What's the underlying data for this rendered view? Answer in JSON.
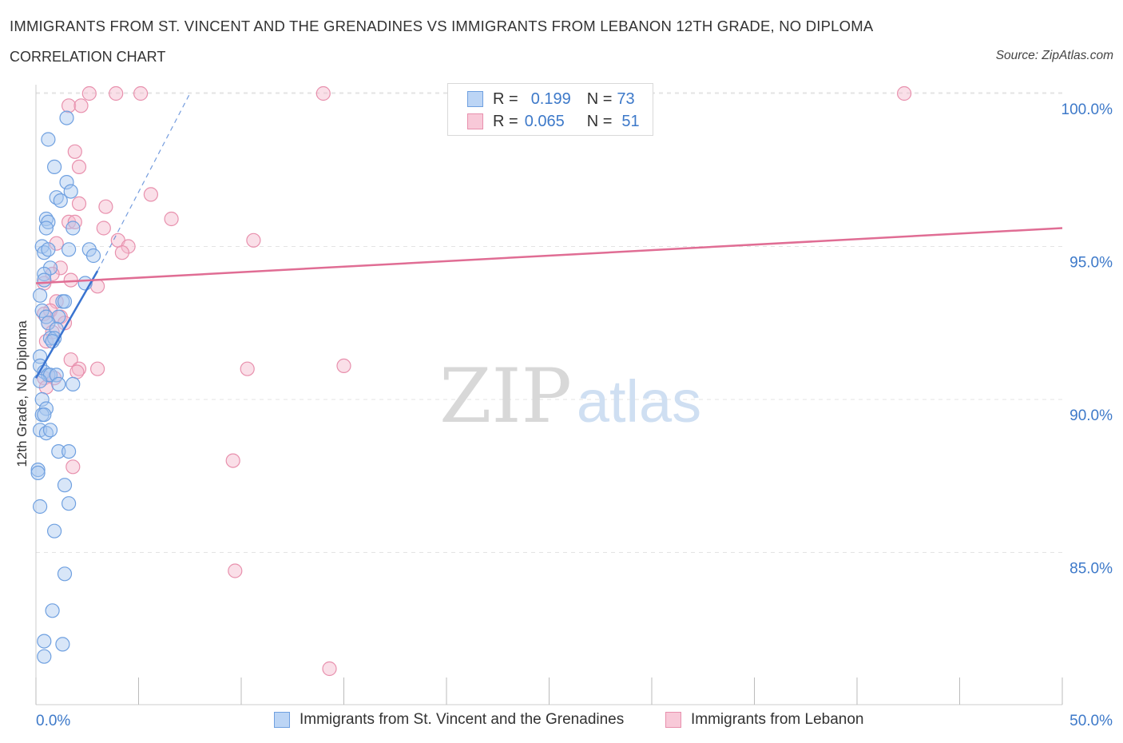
{
  "header": {
    "title": "IMMIGRANTS FROM ST. VINCENT AND THE GRENADINES VS IMMIGRANTS FROM LEBANON 12TH GRADE, NO DIPLOMA",
    "subtitle": "CORRELATION CHART",
    "source": "Source: ZipAtlas.com"
  },
  "watermark": {
    "zip": "ZIP",
    "atlas": "atlas"
  },
  "legend": {
    "r_label": "R =",
    "n_label": "N =",
    "series1": {
      "r": "0.199",
      "n": "73"
    },
    "series2": {
      "r": "0.065",
      "n": "51"
    }
  },
  "colors": {
    "series1_fill": "#a8c8f0",
    "series1_stroke": "#6fa0e0",
    "series1_line": "#3a74d0",
    "series2_fill": "#f5b8cb",
    "series2_stroke": "#e890ad",
    "series2_line": "#e06d94",
    "tick_label": "#3d79c9"
  },
  "chart_data": {
    "type": "scatter",
    "title": "IMMIGRANTS FROM ST. VINCENT AND THE GRENADINES VS IMMIGRANTS FROM LEBANON 12TH GRADE, NO DIPLOMA",
    "xlabel": "",
    "ylabel": "12th Grade, No Diploma",
    "xlim": [
      0,
      50
    ],
    "ylim": [
      80,
      101
    ],
    "x_tick_labels": [
      "0.0%",
      "50.0%"
    ],
    "y_ticks": [
      85,
      90,
      95,
      100
    ],
    "y_tick_labels": [
      "85.0%",
      "90.0%",
      "95.0%",
      "100.0%"
    ],
    "grid": true,
    "series": [
      {
        "name": "Immigrants from St. Vincent and the Grenadines",
        "r": 0.199,
        "n": 73,
        "trend": {
          "x": [
            0.0,
            3.0
          ],
          "y": [
            90.7,
            94.2
          ],
          "dashed_extension": {
            "x": [
              3.0,
              7.5
            ],
            "y": [
              94.2,
              100.0
            ]
          }
        },
        "points": [
          [
            1.5,
            99.2
          ],
          [
            0.6,
            98.5
          ],
          [
            0.9,
            97.6
          ],
          [
            1.5,
            97.1
          ],
          [
            1.0,
            96.6
          ],
          [
            1.7,
            96.8
          ],
          [
            1.2,
            96.5
          ],
          [
            0.5,
            95.9
          ],
          [
            0.6,
            95.8
          ],
          [
            0.5,
            95.6
          ],
          [
            1.8,
            95.6
          ],
          [
            0.3,
            95.0
          ],
          [
            0.4,
            94.8
          ],
          [
            0.6,
            94.9
          ],
          [
            1.6,
            94.9
          ],
          [
            2.6,
            94.9
          ],
          [
            2.8,
            94.7
          ],
          [
            0.7,
            94.3
          ],
          [
            0.4,
            94.1
          ],
          [
            0.4,
            93.9
          ],
          [
            2.4,
            93.8
          ],
          [
            0.2,
            93.4
          ],
          [
            1.3,
            93.2
          ],
          [
            1.4,
            93.2
          ],
          [
            0.3,
            92.9
          ],
          [
            0.5,
            92.7
          ],
          [
            1.1,
            92.7
          ],
          [
            0.6,
            92.5
          ],
          [
            1.0,
            92.3
          ],
          [
            0.7,
            92.0
          ],
          [
            0.9,
            92.0
          ],
          [
            0.8,
            91.9
          ],
          [
            0.2,
            91.4
          ],
          [
            0.2,
            91.1
          ],
          [
            0.4,
            90.9
          ],
          [
            0.6,
            90.8
          ],
          [
            0.7,
            90.8
          ],
          [
            1.0,
            90.8
          ],
          [
            0.2,
            90.6
          ],
          [
            1.1,
            90.5
          ],
          [
            1.8,
            90.5
          ],
          [
            0.3,
            90.0
          ],
          [
            0.5,
            89.7
          ],
          [
            0.3,
            89.5
          ],
          [
            0.4,
            89.5
          ],
          [
            0.2,
            89.0
          ],
          [
            0.5,
            88.9
          ],
          [
            0.7,
            89.0
          ],
          [
            1.1,
            88.3
          ],
          [
            1.6,
            88.3
          ],
          [
            0.1,
            87.7
          ],
          [
            0.1,
            87.6
          ],
          [
            1.4,
            87.2
          ],
          [
            1.6,
            86.6
          ],
          [
            0.2,
            86.5
          ],
          [
            0.9,
            85.7
          ],
          [
            1.4,
            84.3
          ],
          [
            0.8,
            83.1
          ],
          [
            0.4,
            82.1
          ],
          [
            1.3,
            82.0
          ],
          [
            0.4,
            81.6
          ]
        ]
      },
      {
        "name": "Immigrants from Lebanon",
        "r": 0.065,
        "n": 51,
        "trend": {
          "x": [
            0.0,
            50.0
          ],
          "y": [
            93.8,
            95.6
          ]
        },
        "points": [
          [
            2.6,
            100.0
          ],
          [
            3.9,
            100.0
          ],
          [
            5.1,
            100.0
          ],
          [
            14.0,
            100.0
          ],
          [
            42.3,
            100.0
          ],
          [
            1.6,
            99.6
          ],
          [
            2.2,
            99.6
          ],
          [
            1.9,
            98.1
          ],
          [
            2.1,
            97.6
          ],
          [
            5.6,
            96.7
          ],
          [
            2.1,
            96.4
          ],
          [
            3.4,
            96.3
          ],
          [
            6.6,
            95.9
          ],
          [
            1.6,
            95.8
          ],
          [
            1.9,
            95.8
          ],
          [
            3.3,
            95.6
          ],
          [
            4.0,
            95.2
          ],
          [
            10.6,
            95.2
          ],
          [
            1.0,
            95.1
          ],
          [
            4.5,
            95.0
          ],
          [
            4.2,
            94.8
          ],
          [
            1.2,
            94.3
          ],
          [
            0.8,
            94.1
          ],
          [
            1.7,
            93.9
          ],
          [
            0.4,
            93.8
          ],
          [
            3.0,
            93.7
          ],
          [
            1.0,
            93.2
          ],
          [
            0.7,
            92.9
          ],
          [
            0.4,
            92.8
          ],
          [
            1.2,
            92.7
          ],
          [
            0.6,
            92.5
          ],
          [
            1.4,
            92.5
          ],
          [
            0.8,
            92.2
          ],
          [
            0.5,
            91.9
          ],
          [
            1.7,
            91.3
          ],
          [
            2.1,
            91.0
          ],
          [
            3.0,
            91.0
          ],
          [
            10.3,
            91.0
          ],
          [
            15.0,
            91.1
          ],
          [
            2.0,
            90.9
          ],
          [
            0.4,
            90.7
          ],
          [
            0.9,
            90.7
          ],
          [
            0.5,
            90.4
          ],
          [
            1.8,
            87.8
          ],
          [
            9.6,
            88.0
          ],
          [
            9.7,
            84.4
          ],
          [
            14.3,
            81.2
          ]
        ]
      }
    ]
  }
}
